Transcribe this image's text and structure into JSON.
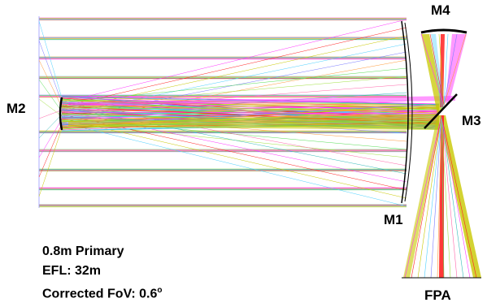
{
  "labels": {
    "m1": "M1",
    "m2": "M2",
    "m3": "M3",
    "m4": "M4",
    "fpa": "FPA"
  },
  "specs": {
    "primary": "0.8m Primary",
    "efl": "EFL: 32m",
    "fov_prefix": "Corrected FoV: 0.6",
    "fov_unit": "o"
  },
  "field_colors": [
    "#ff33ff",
    "#ff2222",
    "#c8c800",
    "#4cd0ff",
    "#7a7aff",
    "#ff9a3a",
    "#55dd55",
    "#a0e040",
    "#ff66aa",
    "#33bbbb"
  ],
  "mirror_color": "#000000"
}
